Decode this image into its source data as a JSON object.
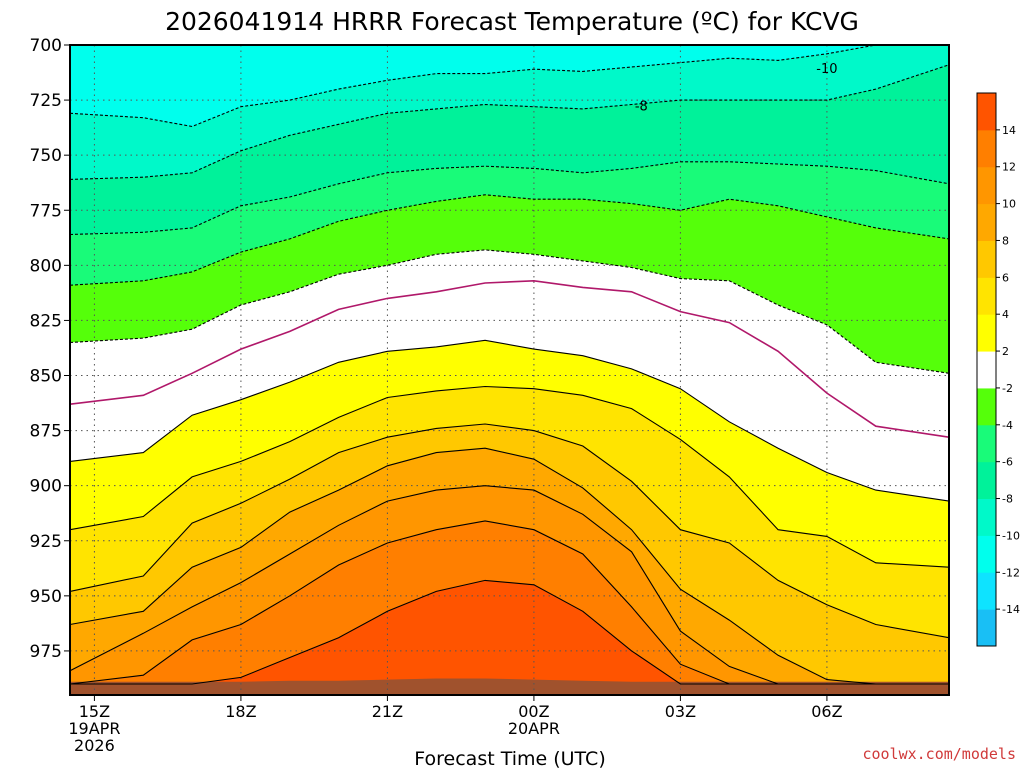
{
  "chart_data": {
    "type": "heatmap",
    "title": "2026041914 HRRR Forecast Temperature (ºC) for KCVG",
    "xlabel": "Forecast Time (UTC)",
    "ylabel": "",
    "credit": "coolwx.com/models",
    "x_hours": [
      14.5,
      16,
      17,
      18,
      19,
      20,
      21,
      22,
      23,
      24,
      25,
      26,
      27,
      28,
      29,
      30,
      31,
      32.5
    ],
    "xlim": [
      14.5,
      32.5
    ],
    "ylim": [
      700,
      995
    ],
    "y_inverted": true,
    "x_ticks": [
      {
        "hour": 15,
        "lines": [
          "15Z",
          "19APR",
          "2026"
        ]
      },
      {
        "hour": 18,
        "lines": [
          "18Z"
        ]
      },
      {
        "hour": 21,
        "lines": [
          "21Z"
        ]
      },
      {
        "hour": 24,
        "lines": [
          "00Z",
          "20APR"
        ]
      },
      {
        "hour": 27,
        "lines": [
          "03Z"
        ]
      },
      {
        "hour": 30,
        "lines": [
          "06Z"
        ]
      }
    ],
    "y_ticks": [
      "700",
      "725",
      "750",
      "775",
      "800",
      "825",
      "850",
      "875",
      "900",
      "925",
      "950",
      "975"
    ],
    "y_tick_values": [
      700,
      725,
      750,
      775,
      800,
      825,
      850,
      875,
      900,
      925,
      950,
      975
    ],
    "ground_pressure": [
      989,
      989,
      989,
      989,
      988.5,
      988.5,
      988,
      987.5,
      987.5,
      988,
      988.5,
      989,
      989,
      989,
      989,
      989,
      989,
      989
    ],
    "ground_color": "#a0522d",
    "contours": [
      {
        "level": -14,
        "p": [
          702,
          702,
          699,
          699,
          699,
          699,
          699,
          699,
          699,
          699,
          699,
          699,
          699,
          699,
          699,
          699,
          699,
          699
        ]
      },
      {
        "level": -12,
        "p": [
          699,
          699,
          700,
          699,
          699,
          699,
          699,
          699,
          699,
          699,
          699,
          699,
          699,
          699,
          699,
          699,
          699,
          699
        ]
      },
      {
        "level": -10,
        "p": [
          731,
          733,
          737,
          728,
          725,
          720,
          716,
          713,
          713,
          711,
          712,
          710,
          708,
          706,
          707,
          704,
          689,
          679
        ]
      },
      {
        "level": -8,
        "p": [
          761,
          760,
          758,
          748,
          741,
          736,
          731,
          729,
          727,
          728,
          729,
          727,
          725,
          725,
          725,
          725,
          720,
          709
        ]
      },
      {
        "level": -6,
        "p": [
          786,
          785,
          783,
          773,
          769,
          763,
          758,
          756,
          755,
          756,
          758,
          756,
          753,
          753,
          754,
          755,
          757,
          763
        ]
      },
      {
        "level": -4,
        "p": [
          809,
          807,
          803,
          794,
          788,
          780,
          775,
          771,
          768,
          770,
          770,
          772,
          775,
          770,
          773,
          778,
          783,
          788
        ]
      },
      {
        "level": -2,
        "p": [
          835,
          833,
          829,
          818,
          812,
          804,
          800,
          795,
          793,
          795,
          798,
          801,
          806,
          807,
          818,
          827,
          844,
          849
        ]
      },
      {
        "level": 0,
        "p": [
          863,
          859,
          849,
          838,
          830,
          820,
          815,
          812,
          808,
          807,
          810,
          812,
          821,
          826,
          839,
          858,
          873,
          878
        ]
      },
      {
        "level": 2,
        "p": [
          889,
          885,
          868,
          861,
          853,
          844,
          839,
          837,
          834,
          838,
          841,
          847,
          856,
          871,
          883,
          894,
          902,
          907
        ]
      },
      {
        "level": 4,
        "p": [
          920,
          914,
          896,
          889,
          880,
          869,
          860,
          857,
          855,
          856,
          859,
          865,
          879,
          896,
          920,
          923,
          935,
          937
        ]
      },
      {
        "level": 6,
        "p": [
          948,
          941,
          917,
          908,
          897,
          885,
          878,
          874,
          872,
          875,
          882,
          898,
          920,
          926,
          943,
          954,
          963,
          969
        ]
      },
      {
        "level": 8,
        "p": [
          963,
          957,
          937,
          928,
          912,
          902,
          891,
          885,
          883,
          888,
          901,
          920,
          947,
          961,
          977,
          988,
          990,
          990
        ]
      },
      {
        "level": 10,
        "p": [
          984,
          967,
          955,
          944,
          931,
          918,
          907,
          902,
          900,
          902,
          913,
          930,
          966,
          982,
          990,
          990,
          990,
          990
        ]
      },
      {
        "level": 12,
        "p": [
          990,
          986,
          970,
          963,
          950,
          936,
          926,
          920,
          916,
          920,
          931,
          955,
          981,
          990,
          990,
          990,
          990,
          990
        ]
      },
      {
        "level": 14,
        "p": [
          990,
          990,
          990,
          987,
          978,
          969,
          957,
          948,
          943,
          945,
          957,
          975,
          990,
          990,
          990,
          990,
          990,
          990
        ]
      }
    ],
    "contour_labels": [
      {
        "text": "-10",
        "hour": 30,
        "p": 711
      },
      {
        "text": "-8",
        "hour": 26.2,
        "p": 728
      }
    ],
    "colorbar": {
      "levels": [
        -16,
        -14,
        -12,
        -10,
        -8,
        -6,
        -4,
        -2,
        2,
        4,
        6,
        8,
        10,
        12,
        14,
        16
      ],
      "colors": [
        "#19bff5",
        "#0ee3ff",
        "#00ffed",
        "#00f9c9",
        "#00f29a",
        "#19fb79",
        "#55ff0a",
        "#ffffff",
        "#ffff00",
        "#ffe400",
        "#ffc800",
        "#ffa800",
        "#ff9600",
        "#ff7f00",
        "#ff5400"
      ],
      "tick_labels": [
        "-14",
        "-12",
        "-10",
        "-8",
        "-6",
        "-4",
        "-2",
        "2",
        "4",
        "6",
        "8",
        "10",
        "12",
        "14"
      ]
    }
  }
}
